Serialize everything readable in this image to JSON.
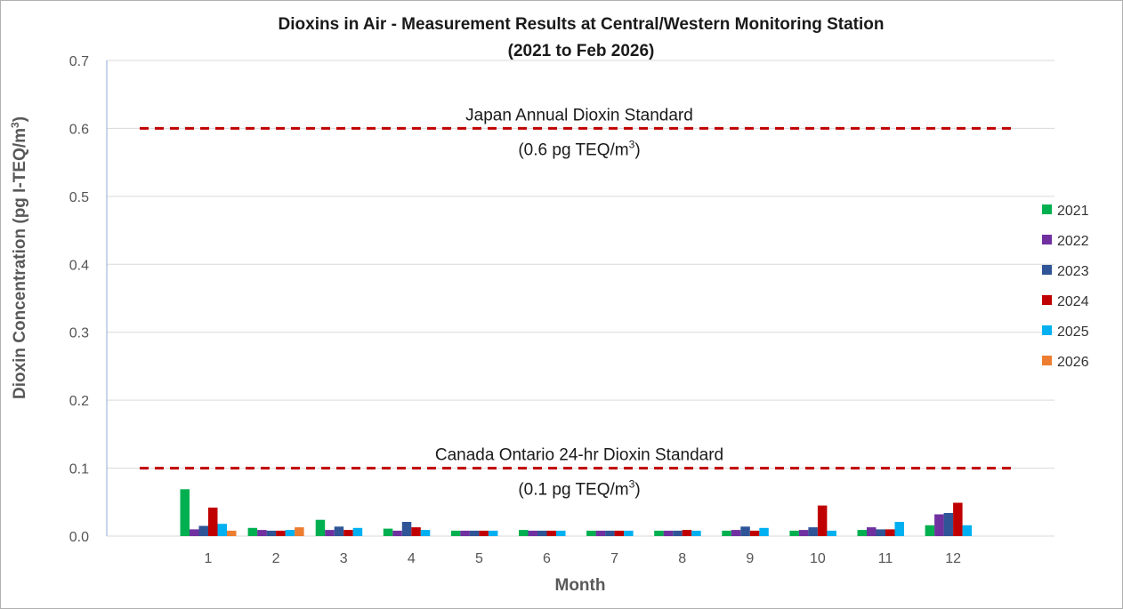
{
  "chart_data": {
    "type": "bar",
    "title": "Dioxins in Air - Measurement Results at Central/Western Monitoring Station",
    "subtitle": "(2021 to Feb 2026)",
    "xlabel": "Month",
    "ylabel": "Dioxin Concentration (pg I-TEQ/m",
    "ylabel_sup": "3",
    "ylabel_end": ")",
    "ylim": [
      0,
      0.7
    ],
    "yticks": [
      "0.0",
      "0.1",
      "0.2",
      "0.3",
      "0.4",
      "0.5",
      "0.6",
      "0.7"
    ],
    "categories": [
      "1",
      "2",
      "3",
      "4",
      "5",
      "6",
      "7",
      "8",
      "9",
      "10",
      "11",
      "12"
    ],
    "series": [
      {
        "name": "2021",
        "color": "#00b050",
        "values": [
          0.069,
          0.012,
          0.024,
          0.011,
          0.008,
          0.009,
          0.008,
          0.008,
          0.008,
          0.008,
          0.009,
          0.016
        ]
      },
      {
        "name": "2022",
        "color": "#7030a0",
        "values": [
          0.01,
          0.009,
          0.009,
          0.008,
          0.008,
          0.008,
          0.008,
          0.008,
          0.009,
          0.009,
          0.013,
          0.032
        ]
      },
      {
        "name": "2023",
        "color": "#2f5597",
        "values": [
          0.015,
          0.008,
          0.014,
          0.021,
          0.008,
          0.008,
          0.008,
          0.008,
          0.014,
          0.013,
          0.01,
          0.034
        ]
      },
      {
        "name": "2024",
        "color": "#c00000",
        "values": [
          0.042,
          0.008,
          0.009,
          0.013,
          0.008,
          0.008,
          0.008,
          0.009,
          0.008,
          0.045,
          0.01,
          0.049
        ]
      },
      {
        "name": "2025",
        "color": "#00b0f0",
        "values": [
          0.018,
          0.009,
          0.012,
          0.009,
          0.008,
          0.008,
          0.008,
          0.008,
          0.012,
          0.008,
          0.021,
          0.016
        ]
      },
      {
        "name": "2026",
        "color": "#ed7d31",
        "values": [
          0.008,
          0.013,
          null,
          null,
          null,
          null,
          null,
          null,
          null,
          null,
          null,
          null
        ]
      }
    ],
    "reference_lines": [
      {
        "name": "Japan Annual Dioxin Standard",
        "value": 0.6,
        "label": "Japan Annual Dioxin Standard",
        "sublabel": "(0.6 pg TEQ/m",
        "sublabel_sup": "3",
        "sublabel_end": ")",
        "color": "#c00000"
      },
      {
        "name": "Canada Ontario 24-hr Dioxin Standard",
        "value": 0.1,
        "label": "Canada Ontario 24-hr Dioxin Standard",
        "sublabel": "(0.1 pg TEQ/m",
        "sublabel_sup": "3",
        "sublabel_end": ")",
        "color": "#c00000"
      }
    ],
    "grid": true,
    "legend_position": "right"
  }
}
